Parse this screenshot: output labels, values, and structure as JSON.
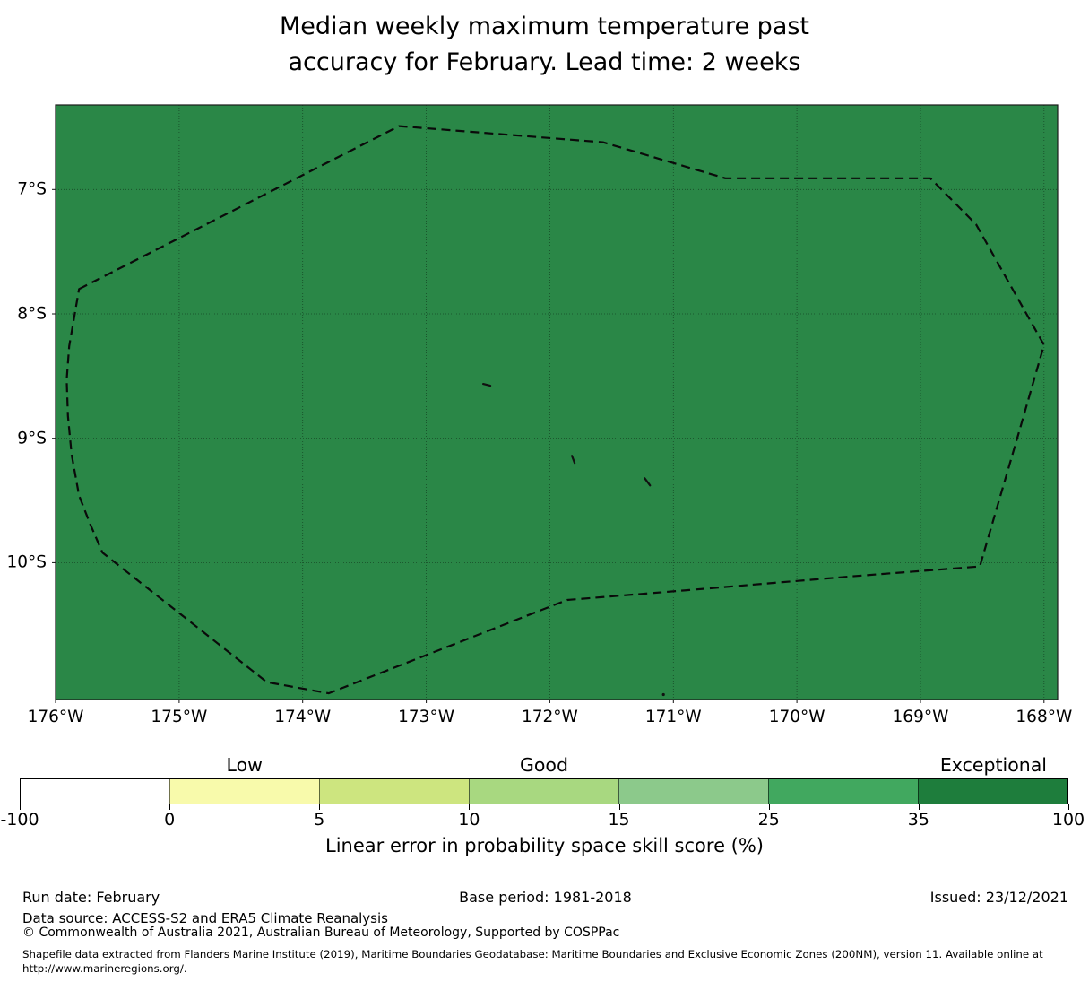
{
  "title": {
    "line1": "Median weekly maximum temperature past",
    "line2": "accuracy for February. Lead time: 2 weeks"
  },
  "map": {
    "fill_color": "#2a8747",
    "boundary_color": "#0a0a0a",
    "extent": {
      "lon_west_deg": 176.0,
      "lon_east_deg": 167.89,
      "lat_north_deg": 6.32,
      "lat_south_deg": 11.1
    },
    "x_ticks": [
      {
        "value": 176,
        "label": "176°W"
      },
      {
        "value": 175,
        "label": "175°W"
      },
      {
        "value": 174,
        "label": "174°W"
      },
      {
        "value": 173,
        "label": "173°W"
      },
      {
        "value": 172,
        "label": "172°W"
      },
      {
        "value": 171,
        "label": "171°W"
      },
      {
        "value": 170,
        "label": "170°W"
      },
      {
        "value": 169,
        "label": "169°W"
      },
      {
        "value": 168,
        "label": "168°W"
      }
    ],
    "y_ticks": [
      {
        "value": 7,
        "label": "7°S"
      },
      {
        "value": 8,
        "label": "8°S"
      },
      {
        "value": 9,
        "label": "9°S"
      },
      {
        "value": 10,
        "label": "10°S"
      }
    ],
    "eez_boundary_lonlat": [
      [
        175.81,
        7.8
      ],
      [
        173.22,
        6.49
      ],
      [
        171.57,
        6.62
      ],
      [
        170.58,
        6.91
      ],
      [
        168.92,
        6.91
      ],
      [
        168.55,
        7.28
      ],
      [
        168.0,
        8.25
      ],
      [
        168.2,
        8.94
      ],
      [
        168.52,
        10.03
      ],
      [
        169.56,
        10.11
      ],
      [
        170.87,
        10.22
      ],
      [
        171.86,
        10.3
      ],
      [
        173.79,
        11.05
      ],
      [
        174.29,
        10.96
      ],
      [
        175.62,
        9.92
      ],
      [
        175.72,
        9.69
      ],
      [
        175.81,
        9.46
      ],
      [
        175.87,
        9.13
      ],
      [
        175.9,
        8.82
      ],
      [
        175.91,
        8.53
      ],
      [
        175.89,
        8.26
      ]
    ],
    "islands": [
      {
        "lon": 172.51,
        "lat": 8.57,
        "type": "dash"
      },
      {
        "lon": 171.81,
        "lat": 9.17,
        "type": "tick"
      },
      {
        "lon": 171.21,
        "lat": 9.35,
        "type": "slash"
      },
      {
        "lon": 171.08,
        "lat": 11.06,
        "type": "dot"
      }
    ]
  },
  "colorbar": {
    "title": "Linear error in probability space skill score (%)",
    "bounds": [
      -100,
      0,
      5,
      10,
      15,
      25,
      35,
      100
    ],
    "tick_labels": [
      "-100",
      "0",
      "5",
      "10",
      "15",
      "25",
      "35",
      "100"
    ],
    "colors": [
      "#ffffff",
      "#f8faab",
      "#cde57f",
      "#a8d880",
      "#8cc98b",
      "#41a85f",
      "#1e7d3c"
    ],
    "categories": [
      {
        "label": "Low",
        "segment": 1
      },
      {
        "label": "Good",
        "segment": 3
      },
      {
        "label": "Exceptional",
        "segment": 6
      }
    ]
  },
  "footer": {
    "run_date": "Run date: February",
    "base_period": "Base period: 1981-2018",
    "issued": "Issued: 23/12/2021",
    "data_source": "Data source: ACCESS-S2 and ERA5 Climate Reanalysis",
    "copyright": "© Commonwealth of Australia 2021, Australian Bureau of Meteorology, Supported by COSPPac",
    "shapefile_note": "Shapefile data extracted from Flanders Marine Institute (2019), Maritime Boundaries Geodatabase: Maritime Boundaries and Exclusive Economic Zones (200NM), version 11. Available online at http://www.marineregions.org/."
  },
  "chart_data": {
    "type": "heatmap",
    "title": "Median weekly maximum temperature past accuracy for February. Lead time: 2 weeks",
    "x_tick_labels": [
      "176°W",
      "175°W",
      "174°W",
      "173°W",
      "172°W",
      "171°W",
      "170°W",
      "169°W",
      "168°W"
    ],
    "y_tick_labels": [
      "7°S",
      "8°S",
      "9°S",
      "10°S"
    ],
    "x_range_deg_west": [
      176.0,
      167.89
    ],
    "y_range_deg_south": [
      6.32,
      11.1
    ],
    "grid": true,
    "colorbar_label": "Linear error in probability space skill score (%)",
    "colorbar_bounds": [
      -100,
      0,
      5,
      10,
      15,
      25,
      35,
      100
    ],
    "colorbar_colors": [
      "#ffffff",
      "#f8faab",
      "#cde57f",
      "#a8d880",
      "#8cc98b",
      "#41a85f",
      "#1e7d3c"
    ],
    "colorbar_categories": [
      {
        "label": "Low",
        "range": [
          0,
          5
        ]
      },
      {
        "label": "Good",
        "range": [
          10,
          15
        ]
      },
      {
        "label": "Exceptional",
        "range": [
          35,
          100
        ]
      }
    ],
    "field": {
      "description": "Uniform skill value over the entire mapped EEZ region",
      "bin": [
        35,
        100
      ],
      "bin_label": "Exceptional",
      "fill_color": "#2a8747"
    }
  }
}
